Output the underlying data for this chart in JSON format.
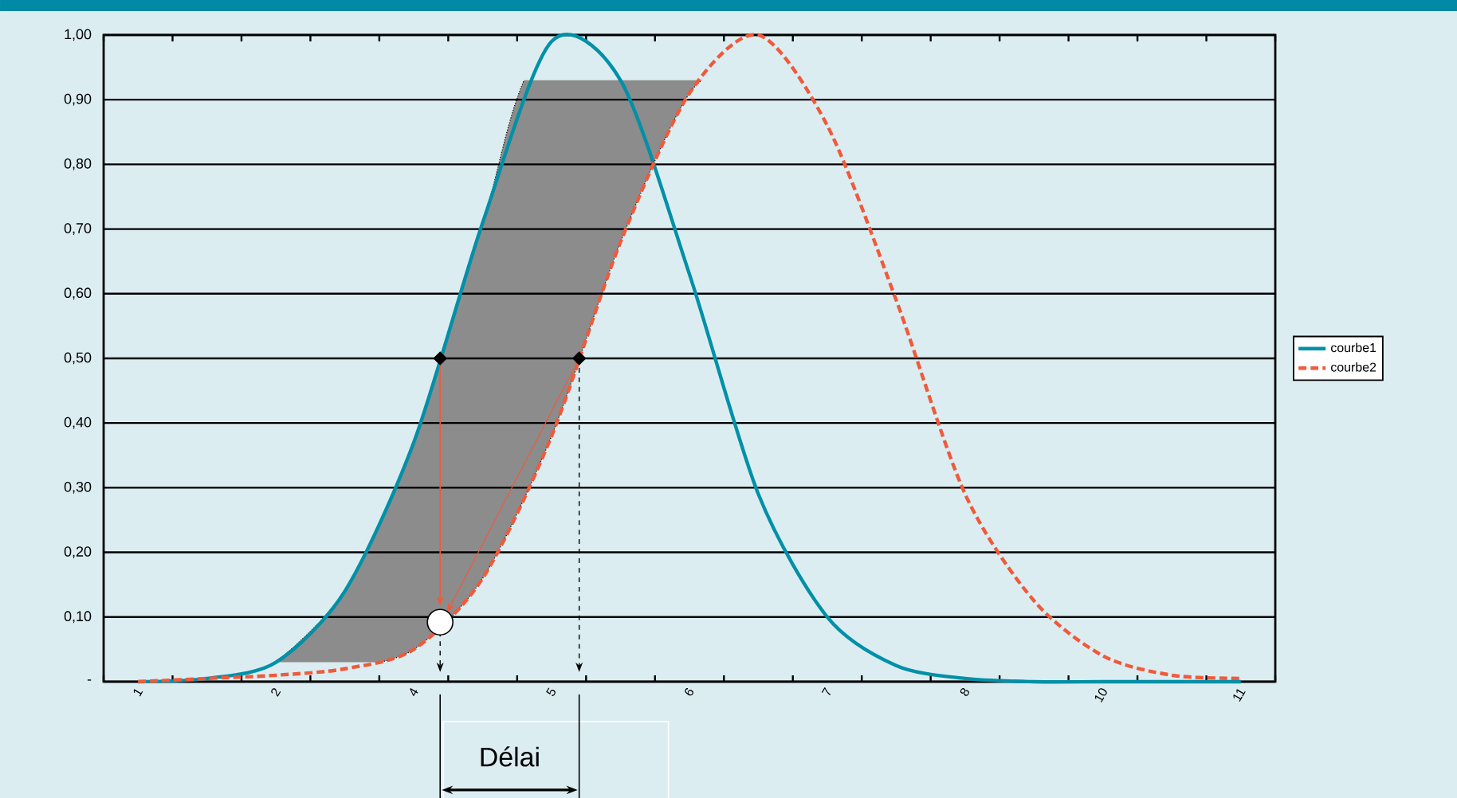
{
  "chart_data": {
    "type": "line",
    "categories": [
      "1",
      null,
      "2",
      null,
      "4",
      null,
      "5",
      null,
      "6",
      null,
      "7",
      null,
      "8",
      null,
      "10",
      null,
      "11"
    ],
    "series": [
      {
        "name": "courbe1",
        "color": "#0090a8",
        "line_style": "solid",
        "values": [
          0.0,
          0.005,
          0.03,
          0.14,
          0.37,
          0.71,
          0.99,
          0.93,
          0.63,
          0.29,
          0.1,
          0.025,
          0.005,
          0.0,
          0.0,
          0.0,
          0.0
        ]
      },
      {
        "name": "courbe2",
        "color": "#f05a3a",
        "line_style": "dashed",
        "values": [
          0.0,
          0.005,
          0.01,
          0.02,
          0.05,
          0.16,
          0.38,
          0.68,
          0.91,
          1.0,
          0.86,
          0.59,
          0.29,
          0.125,
          0.04,
          0.01,
          0.005
        ]
      }
    ],
    "ylim": [
      0,
      1
    ],
    "yticks": [
      {
        "value": 0,
        "label": "-"
      },
      {
        "value": 0.1,
        "label": "0,10"
      },
      {
        "value": 0.2,
        "label": "0,20"
      },
      {
        "value": 0.3,
        "label": "0,30"
      },
      {
        "value": 0.4,
        "label": "0,40"
      },
      {
        "value": 0.5,
        "label": "0,50"
      },
      {
        "value": 0.6,
        "label": "0,60"
      },
      {
        "value": 0.7,
        "label": "0,70"
      },
      {
        "value": 0.8,
        "label": "0,80"
      },
      {
        "value": 0.9,
        "label": "0,90"
      },
      {
        "value": 1.0,
        "label": "1,00"
      }
    ],
    "grid": "y",
    "legend": "right",
    "marker": "none",
    "annotations": [
      "Délai"
    ]
  }
}
